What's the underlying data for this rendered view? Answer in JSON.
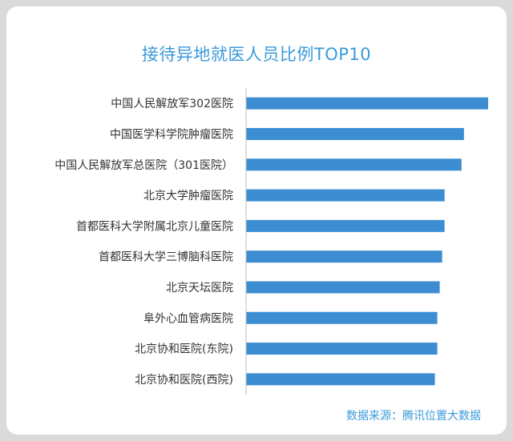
{
  "title": "接待异地就医人员比例TOP10",
  "source": "数据来源：腾讯位置大数据",
  "colors": {
    "bar": "#3c8dd2",
    "axis": "#bfbfbf",
    "title": "#3a9ad9",
    "label": "#333333"
  },
  "chart_data": {
    "type": "bar",
    "orientation": "horizontal",
    "title": "接待异地就医人员比例TOP10",
    "categories": [
      "中国人民解放军302医院",
      "中国医学科学院肿瘤医院",
      "中国人民解放军总医院（301医院）",
      "北京大学肿瘤医院",
      "首都医科大学附属北京儿童医院",
      "首都医科大学三博脑科医院",
      "北京天坛医院",
      "阜外心血管病医院",
      "北京协和医院(东院)",
      "北京协和医院(西院)"
    ],
    "values": [
      100,
      90,
      89,
      82,
      82,
      81,
      80,
      79,
      79,
      78
    ],
    "xlim": [
      0,
      100
    ],
    "grid": false,
    "legend": "none"
  }
}
